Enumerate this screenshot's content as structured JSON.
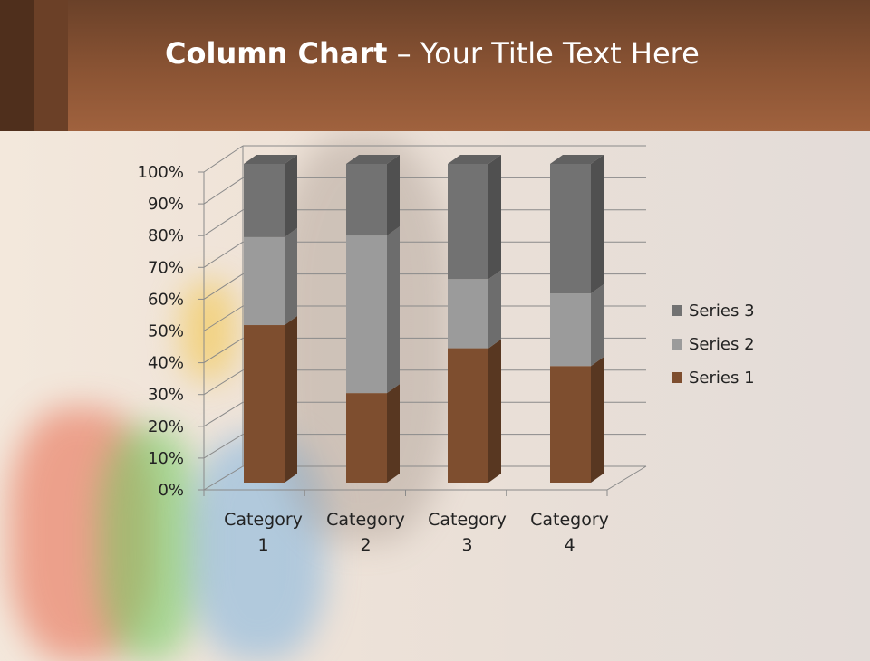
{
  "slide": {
    "title_bold": "Column Chart",
    "title_rest": " – Your Title Text Here"
  },
  "chart_data": {
    "type": "bar",
    "subtype": "100% stacked 3D column",
    "categories": [
      "Category 1",
      "Category 2",
      "Category 3",
      "Category 4"
    ],
    "category_lines": [
      [
        "Category",
        "1"
      ],
      [
        "Category",
        "2"
      ],
      [
        "Category",
        "3"
      ],
      [
        "Category",
        "4"
      ]
    ],
    "series": [
      {
        "name": "Series 1",
        "values": [
          4.3,
          2.5,
          3.5,
          4.5
        ],
        "color": "#7e4e2f"
      },
      {
        "name": "Series 2",
        "values": [
          2.4,
          4.4,
          1.8,
          2.8
        ],
        "color": "#9b9b9b"
      },
      {
        "name": "Series 3",
        "values": [
          2,
          2,
          3,
          5
        ],
        "color": "#727272"
      }
    ],
    "yticks": [
      "0%",
      "10%",
      "20%",
      "30%",
      "40%",
      "50%",
      "60%",
      "70%",
      "80%",
      "90%",
      "100%"
    ],
    "ylim": [
      0,
      100
    ],
    "grid": true,
    "legend_position": "right"
  }
}
